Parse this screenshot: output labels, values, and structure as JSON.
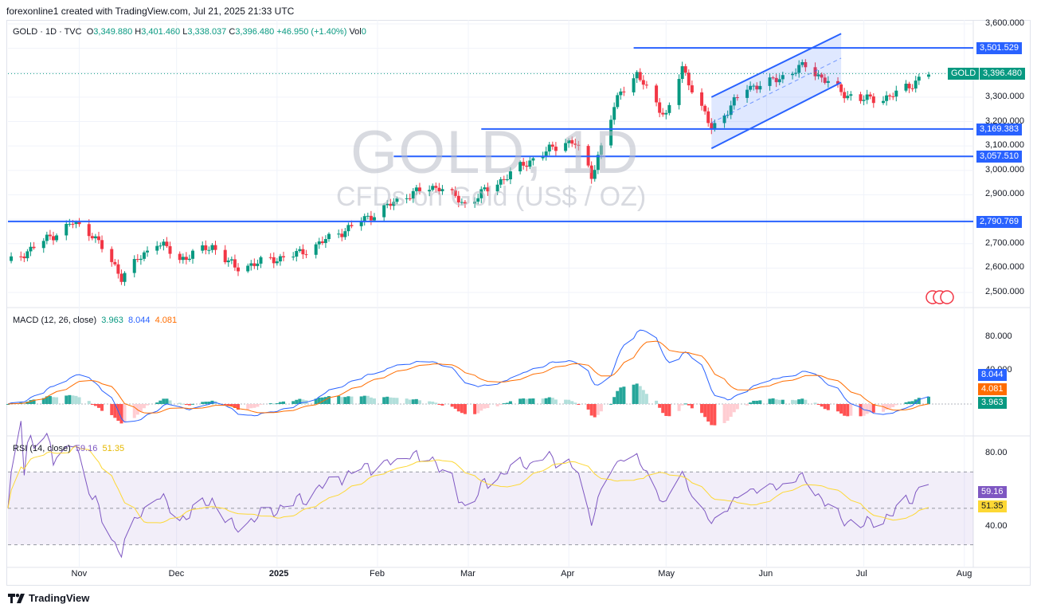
{
  "header": {
    "caption": "forexonline1 created with TradingView.com, Jul 21, 2025 21:33 UTC",
    "symbol_line": "GOLD · 1D · TVC",
    "open_key": "O",
    "open": "3,349.880",
    "high_key": "H",
    "high": "3,401.460",
    "low_key": "L",
    "low": "3,338.037",
    "close_key": "C",
    "close": "3,396.480",
    "change": "+46.950 (+1.40%)",
    "vol_key": "Vol",
    "vol": "0"
  },
  "watermark": {
    "title": "GOLD, 1D",
    "subtitle": "CFDs on Gold (US$ / OZ)"
  },
  "colors": {
    "up": "#089981",
    "down": "#f23645",
    "level": "#2962ff",
    "macd": "#2962ff",
    "signal": "#ff6d00",
    "rsi": "#7e57c2",
    "rsi_ma": "#fdd835"
  },
  "price_axis": [
    "3,600.000",
    "3,300.000",
    "3,200.000",
    "3,100.000",
    "3,000.000",
    "2,900.000",
    "2,700.000",
    "2,600.000",
    "2,500.000"
  ],
  "levels": [
    {
      "label": "3,501.529",
      "value": 3501.529
    },
    {
      "label": "3,169.383",
      "value": 3169.383
    },
    {
      "label": "3,057.510",
      "value": 3057.51
    },
    {
      "label": "2,790.769",
      "value": 2790.769
    }
  ],
  "last_price": {
    "symbol": "GOLD",
    "value": "3,396.480"
  },
  "macd": {
    "label": "MACD (12, 26, close)",
    "hist": "3.963",
    "macd": "8.044",
    "signal": "4.081",
    "axis": [
      "80.000",
      "40.000"
    ]
  },
  "rsi": {
    "label": "RSI (14, close)",
    "value": "59.16",
    "ma": "51.35",
    "axis": [
      "80.00",
      "40.00"
    ]
  },
  "time_axis": [
    "Nov",
    "Dec",
    "2025",
    "Feb",
    "Mar",
    "Apr",
    "May",
    "Jun",
    "Jul",
    "Aug"
  ],
  "footer": {
    "brand": "TradingView"
  },
  "chart_data": {
    "type": "candlestick",
    "title": "GOLD · 1D · TVC",
    "x_range": [
      "2024-10-10",
      "2025-07-21"
    ],
    "ylim": [
      2480,
      3620
    ],
    "monthly_closes": [
      {
        "x": "2024-10",
        "y": 2740
      },
      {
        "x": "2024-11",
        "y": 2650
      },
      {
        "x": "2024-12",
        "y": 2625
      },
      {
        "x": "2025-01",
        "y": 2800
      },
      {
        "x": "2025-02",
        "y": 2860
      },
      {
        "x": "2025-03",
        "y": 3120
      },
      {
        "x": "2025-04",
        "y": 3290
      },
      {
        "x": "2025-05",
        "y": 3290
      },
      {
        "x": "2025-06",
        "y": 3305
      },
      {
        "x": "2025-07",
        "y": 3396.48
      }
    ],
    "channel": {
      "type": "rising",
      "start": "2025-05-15",
      "end": "2025-06-24"
    },
    "macd_range": [
      -35,
      95
    ],
    "rsi_range": [
      25,
      85
    ],
    "grid": true
  }
}
